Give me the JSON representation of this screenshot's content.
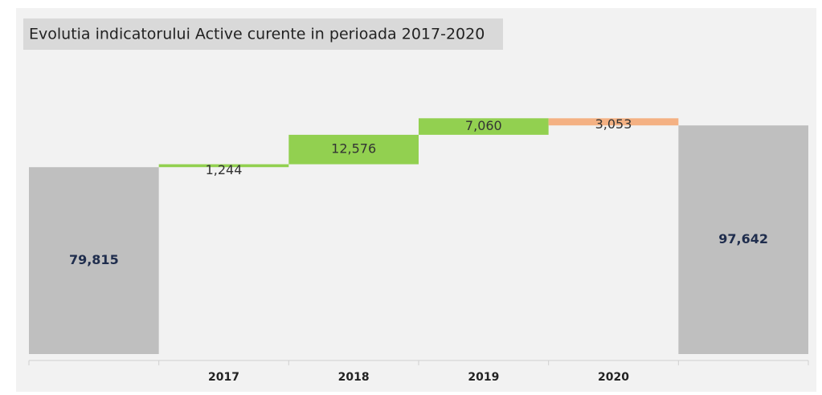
{
  "chart_data": {
    "type": "waterfall",
    "title": "Evolutia indicatorului Active curente in perioada 2017-2020",
    "categories": [
      null,
      "2017",
      "2018",
      "2019",
      "2020",
      null
    ],
    "values": [
      79815,
      1244,
      12576,
      7060,
      -3053,
      97642
    ],
    "value_labels": [
      "79,815",
      "1,244",
      "12,576",
      "7,060",
      "3,053",
      "97,642"
    ],
    "is_total": [
      true,
      false,
      false,
      false,
      false,
      true
    ],
    "colors": {
      "total": "#bfbfbf",
      "increase": "#92d050",
      "decrease": "#f4b183"
    },
    "ylim": [
      0,
      120000
    ]
  }
}
